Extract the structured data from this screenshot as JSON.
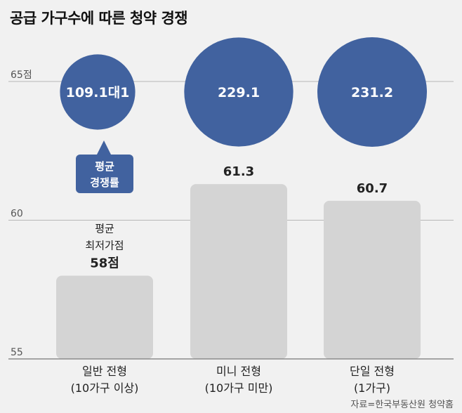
{
  "chart_data": {
    "type": "bar",
    "title": "공급 가구수에 따른 청약 경쟁",
    "source": "자료=한국부동산원 청약홈",
    "y_ticks": [
      "65점",
      "60",
      "55"
    ],
    "y_tick_values": [
      65,
      60,
      55
    ],
    "ylim": [
      55,
      65
    ],
    "categories": [
      {
        "line1": "일반 전형",
        "line2": "(10가구 이상)"
      },
      {
        "line1": "미니 전형",
        "line2": "(10가구 미만)"
      },
      {
        "line1": "단일 전형",
        "line2": "(1가구)"
      }
    ],
    "series": [
      {
        "name": "평균 최저가점",
        "values": [
          58,
          61.3,
          60.7
        ],
        "value_labels": [
          "58점",
          "61.3",
          "60.7"
        ],
        "color": "#d4d4d4"
      },
      {
        "name": "평균 경쟁률",
        "values": [
          109.1,
          229.1,
          231.2
        ],
        "value_labels": [
          "109.1대1",
          "229.1",
          "231.2"
        ],
        "color": "#41629f"
      }
    ],
    "annotations": {
      "min_score_label": [
        "평균",
        "최저가점"
      ],
      "competition_callout": [
        "평균",
        "경쟁률"
      ]
    },
    "grid": true
  }
}
